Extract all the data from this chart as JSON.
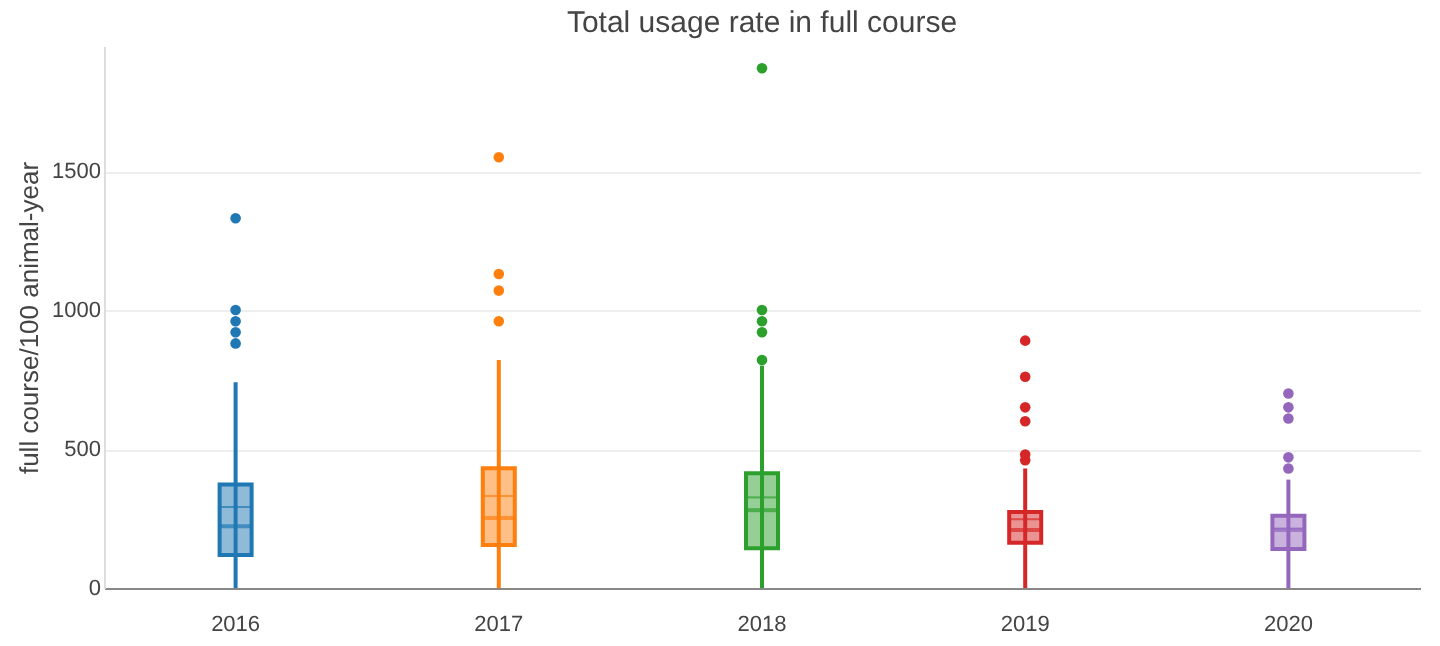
{
  "chart_data": {
    "type": "box",
    "title": "Total usage rate in full course",
    "ylabel": "full course/100 animal-year",
    "categories": [
      "2016",
      "2017",
      "2018",
      "2019",
      "2020"
    ],
    "colors": [
      "#1f77b4",
      "#ff7f0e",
      "#2ca02c",
      "#d62728",
      "#9467bd"
    ],
    "boxes": [
      {
        "low": 0,
        "q1": 119,
        "median": 222,
        "q3": 372,
        "high": 740,
        "mean": 291,
        "outliers": [
          880,
          920,
          960,
          1000,
          1330
        ]
      },
      {
        "low": 0,
        "q1": 155,
        "median": 252,
        "q3": 431,
        "high": 820,
        "mean": 331,
        "outliers": [
          960,
          1070,
          1130,
          1550
        ]
      },
      {
        "low": 0,
        "q1": 143,
        "median": 280,
        "q3": 413,
        "high": 800,
        "mean": 326,
        "outliers": [
          820,
          920,
          960,
          1000,
          1870
        ]
      },
      {
        "low": 0,
        "q1": 163,
        "median": 209,
        "q3": 273,
        "high": 430,
        "mean": 247,
        "outliers": [
          460,
          480,
          600,
          650,
          760,
          890
        ]
      },
      {
        "low": 0,
        "q1": 140,
        "median": 209,
        "q3": 260,
        "high": 390,
        "mean": 214,
        "outliers": [
          430,
          470,
          610,
          650,
          700
        ]
      }
    ],
    "ylim": [
      0,
      1950
    ],
    "yticks": [
      0,
      500,
      1000,
      1500
    ],
    "grid": "y"
  }
}
